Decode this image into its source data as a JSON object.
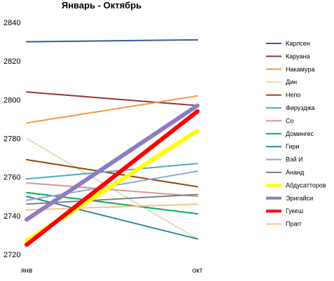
{
  "chart_data": {
    "type": "line",
    "title": "Январь - Октябрь",
    "xlabel": "",
    "ylabel": "",
    "categories": [
      "янв",
      "окт"
    ],
    "ylim": [
      2720,
      2840
    ],
    "yticks": [
      2720,
      2740,
      2760,
      2780,
      2800,
      2820,
      2840
    ],
    "grid": false,
    "legend_position": "right",
    "series": [
      {
        "name": "Карлсен",
        "values": [
          2830,
          2831
        ],
        "color": "#2F5F9A",
        "width": 2
      },
      {
        "name": "Каруана",
        "values": [
          2804,
          2797
        ],
        "color": "#953735",
        "width": 2
      },
      {
        "name": "Накамура",
        "values": [
          2788,
          2802
        ],
        "color": "#F79646",
        "width": 2
      },
      {
        "name": "Дин",
        "values": [
          2780,
          2728
        ],
        "color": "#D7E4BD",
        "width": 2
      },
      {
        "name": "Непо",
        "values": [
          2769,
          2755
        ],
        "color": "#984807",
        "width": 2
      },
      {
        "name": "Фирузджа",
        "values": [
          2759,
          2767
        ],
        "color": "#4BACC6",
        "width": 2
      },
      {
        "name": "Со",
        "values": [
          2757,
          2750
        ],
        "color": "#D99694",
        "width": 2
      },
      {
        "name": "Домингес",
        "values": [
          2752,
          2741
        ],
        "color": "#00B050",
        "width": 2
      },
      {
        "name": "Гири",
        "values": [
          2750,
          2728
        ],
        "color": "#31859C",
        "width": 2
      },
      {
        "name": "Вэй И",
        "values": [
          2748,
          2763
        ],
        "color": "#8EA9DB",
        "width": 2
      },
      {
        "name": "Ананд",
        "values": [
          2746,
          2751
        ],
        "color": "#808080",
        "width": 2
      },
      {
        "name": "Абдусатторов",
        "values": [
          2727,
          2784
        ],
        "color": "#FFFF00",
        "width": 6
      },
      {
        "name": "Эригайси",
        "values": [
          2738,
          2797
        ],
        "color": "#8E7CC3",
        "width": 6
      },
      {
        "name": "Гукеш",
        "values": [
          2725,
          2794
        ],
        "color": "#FF0000",
        "width": 6
      },
      {
        "name": "Прагг",
        "values": [
          2743,
          2746
        ],
        "color": "#FAC090",
        "width": 2
      }
    ]
  }
}
